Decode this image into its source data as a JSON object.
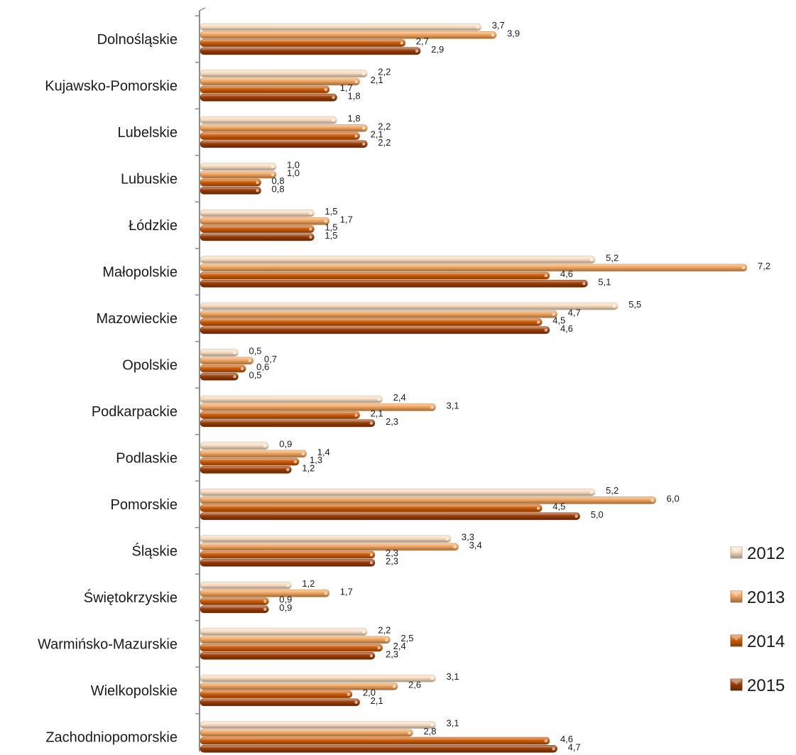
{
  "chart_data": {
    "type": "bar",
    "orientation": "horizontal",
    "categories": [
      "Dolnośląskie",
      "Kujawsko-Pomorskie",
      "Lubelskie",
      "Lubuskie",
      "Łódzkie",
      "Małopolskie",
      "Mazowieckie",
      "Opolskie",
      "Podkarpackie",
      "Podlaskie",
      "Pomorskie",
      "Śląskie",
      "Świętokrzyskie",
      "Warmińsko-Mazurskie",
      "Wielkopolskie",
      "Zachodniopomorskie"
    ],
    "series": [
      {
        "name": "2012",
        "color": "#f7dcc0",
        "values": [
          3.7,
          2.2,
          1.8,
          1.0,
          1.5,
          5.2,
          5.5,
          0.5,
          2.4,
          0.9,
          5.2,
          3.3,
          1.2,
          2.2,
          3.1,
          3.1
        ],
        "labels": [
          "3,7",
          "2,2",
          "1,8",
          "1,0",
          "1,5",
          "5,2",
          "5,5",
          "0,5",
          "2,4",
          "0,9",
          "5,2",
          "3,3",
          "1,2",
          "2,2",
          "3,1",
          "3,1"
        ]
      },
      {
        "name": "2013",
        "color": "#f0a35c",
        "values": [
          3.9,
          2.1,
          2.2,
          1.0,
          1.7,
          7.2,
          4.7,
          0.7,
          3.1,
          1.4,
          6.0,
          3.4,
          1.7,
          2.5,
          2.6,
          2.8
        ],
        "labels": [
          "3,9",
          "2,1",
          "2,2",
          "1,0",
          "1,7",
          "7,2",
          "4,7",
          "0,7",
          "3,1",
          "1,4",
          "6,0",
          "3,4",
          "1,7",
          "2,5",
          "2,6",
          "2,8"
        ]
      },
      {
        "name": "2014",
        "color": "#cc5c0a",
        "values": [
          2.7,
          1.7,
          2.1,
          0.8,
          1.5,
          4.6,
          4.5,
          0.6,
          2.1,
          1.3,
          4.5,
          2.3,
          0.9,
          2.4,
          2.0,
          4.6
        ],
        "labels": [
          "2,7",
          "1,7",
          "2,1",
          "0,8",
          "1,5",
          "4,6",
          "4,5",
          "0,6",
          "2,1",
          "1,3",
          "4,5",
          "2,3",
          "0,9",
          "2,4",
          "2,0",
          "4,6"
        ]
      },
      {
        "name": "2015",
        "color": "#9a3c05",
        "values": [
          2.9,
          1.8,
          2.2,
          0.8,
          1.5,
          5.1,
          4.6,
          0.5,
          2.3,
          1.2,
          5.0,
          2.3,
          0.9,
          2.3,
          2.1,
          4.7
        ],
        "labels": [
          "2,9",
          "1,8",
          "2,2",
          "0,8",
          "1,5",
          "5,1",
          "4,6",
          "0,5",
          "2,3",
          "1,2",
          "5,0",
          "2,3",
          "0,9",
          "2,3",
          "2,1",
          "4,7"
        ]
      }
    ],
    "xlim": [
      0,
      7.2
    ],
    "grid": false,
    "legend": "right",
    "axis_color": "#8c8c8c"
  }
}
